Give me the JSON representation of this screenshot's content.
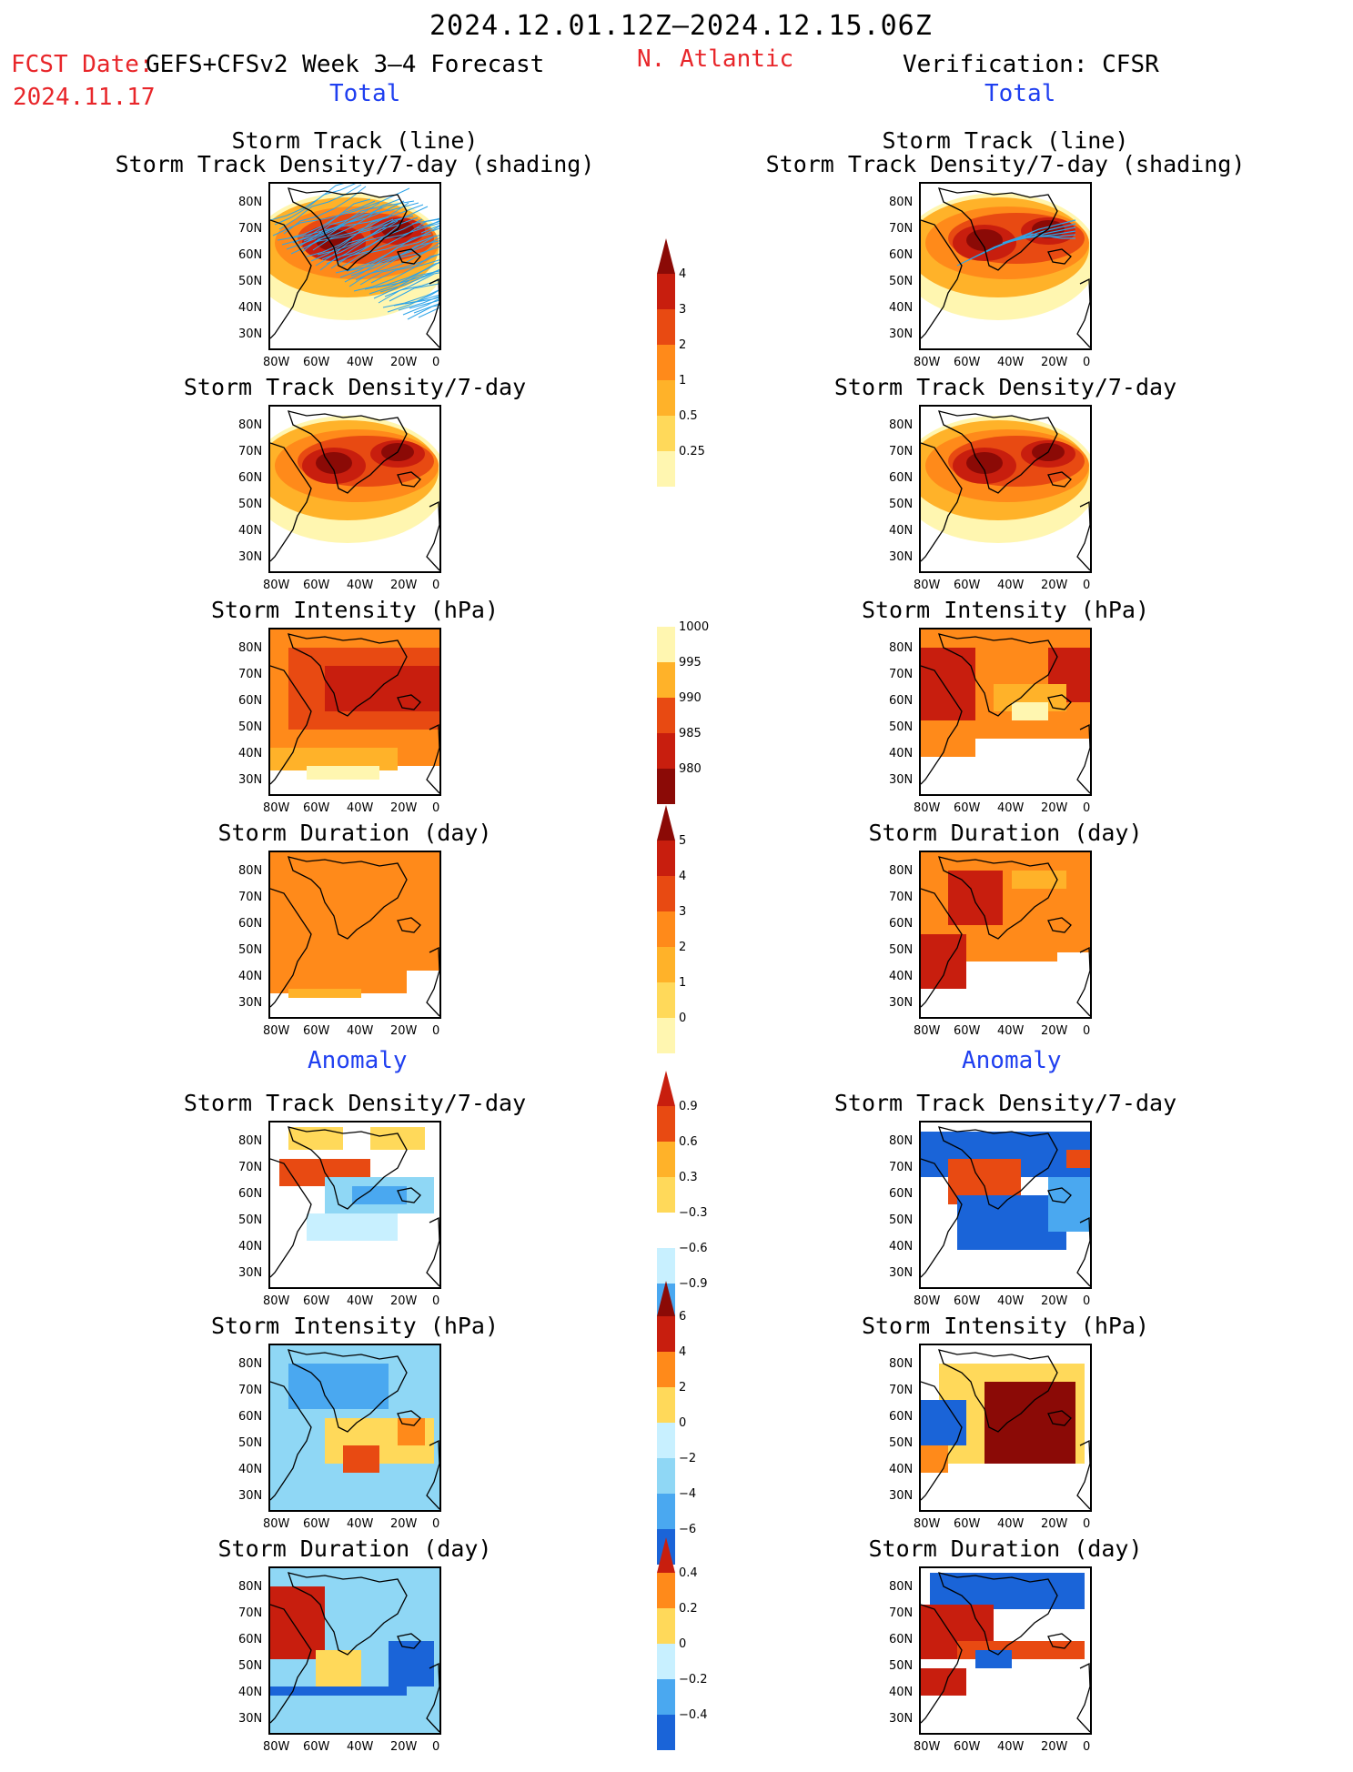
{
  "header": {
    "date_range": "2024.12.01.12Z–2024.12.15.06Z",
    "fcst_label": "FCST Date:",
    "fcst_date": "2024.11.17",
    "model": "GEFS+CFSv2 Week 3–4 Forecast",
    "region": "N. Atlantic",
    "verification": "Verification: CFSR",
    "left_total": "Total",
    "right_total": "Total",
    "left_anomaly": "Anomaly",
    "right_anomaly": "Anomaly"
  },
  "panels": {
    "row1_line1": "Storm Track (line)",
    "row1_line2": "Storm Track Density/7-day (shading)",
    "density": "Storm Track Density/7-day",
    "intensity": "Storm Intensity (hPa)",
    "duration": "Storm Duration (day)"
  },
  "axes": {
    "lat": [
      "80N",
      "70N",
      "60N",
      "50N",
      "40N",
      "30N"
    ],
    "lon": [
      "80W",
      "60W",
      "40W",
      "20W",
      "0"
    ]
  },
  "colorbars": {
    "density_total": [
      "4",
      "3",
      "2",
      "1",
      "0.5",
      "0.25"
    ],
    "intensity_total": [
      "1000",
      "995",
      "990",
      "985",
      "980"
    ],
    "duration_total": [
      "5",
      "4",
      "3",
      "2",
      "1",
      "0"
    ],
    "density_anom": [
      "0.9",
      "0.6",
      "0.3",
      "−0.3",
      "−0.6",
      "−0.9"
    ],
    "intensity_anom": [
      "6",
      "4",
      "2",
      "0",
      "−2",
      "−4",
      "−6"
    ],
    "duration_anom": [
      "0.4",
      "0.2",
      "0",
      "−0.2",
      "−0.4"
    ]
  },
  "colors": {
    "warm": [
      "#fff6b0",
      "#ffd95a",
      "#ffb229",
      "#ff8a1a",
      "#e84a12",
      "#c81e0e",
      "#8b0a06"
    ],
    "cool": [
      "#c8f0ff",
      "#8fd7f5",
      "#4aa8f0",
      "#1a64d8"
    ],
    "track_line": "#2ea4e8"
  }
}
